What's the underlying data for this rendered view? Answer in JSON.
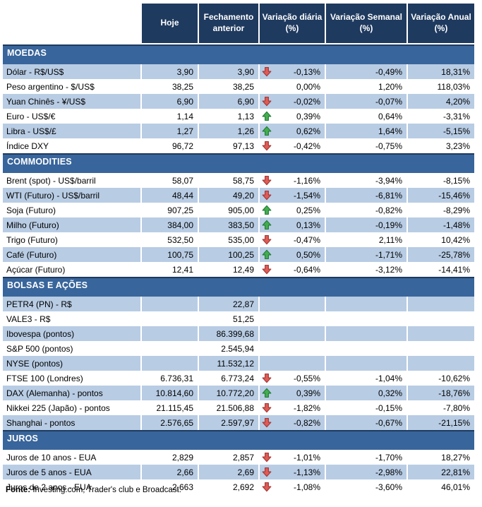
{
  "colors": {
    "header_bg": "#1F3A5F",
    "section_bg": "#38659B",
    "row_alt": "#B8CCE4",
    "arrow_up_fill": "#44AE4E",
    "arrow_up_stroke": "#1E7B33",
    "arrow_down_fill": "#E05B55",
    "arrow_down_stroke": "#A03634"
  },
  "header": {
    "columns": [
      "Hoje",
      "Fechamento anterior",
      "Variação diária (%)",
      "Variação Semanal (%)",
      "Variação Anual (%)"
    ]
  },
  "sections": [
    {
      "title": "MOEDAS",
      "rows": [
        {
          "label": "Dólar - R$/US$",
          "hoje": "3,90",
          "fechamento": "3,90",
          "arrow": "down",
          "diaria": "-0,13%",
          "semanal": "-0,49%",
          "anual": "18,31%"
        },
        {
          "label": "Peso argentino - $/US$",
          "hoje": "38,25",
          "fechamento": "38,25",
          "arrow": "none",
          "diaria": "0,00%",
          "semanal": "1,20%",
          "anual": "118,03%"
        },
        {
          "label": "Yuan Chinês - ¥/US$",
          "hoje": "6,90",
          "fechamento": "6,90",
          "arrow": "down",
          "diaria": "-0,02%",
          "semanal": "-0,07%",
          "anual": "4,20%"
        },
        {
          "label": "Euro - US$/€",
          "hoje": "1,14",
          "fechamento": "1,13",
          "arrow": "up",
          "diaria": "0,39%",
          "semanal": "0,64%",
          "anual": "-3,31%"
        },
        {
          "label": "Libra - US$/£",
          "hoje": "1,27",
          "fechamento": "1,26",
          "arrow": "up",
          "diaria": "0,62%",
          "semanal": "1,64%",
          "anual": "-5,15%"
        },
        {
          "label": "Índice DXY",
          "hoje": "96,72",
          "fechamento": "97,13",
          "arrow": "down",
          "diaria": "-0,42%",
          "semanal": "-0,75%",
          "anual": "3,23%"
        }
      ]
    },
    {
      "title": "COMMODITIES",
      "rows": [
        {
          "label": "Brent (spot) - US$/barril",
          "hoje": "58,07",
          "fechamento": "58,75",
          "arrow": "down",
          "diaria": "-1,16%",
          "semanal": "-3,94%",
          "anual": "-8,15%"
        },
        {
          "label": "WTI (Futuro) - US$/barril",
          "hoje": "48,44",
          "fechamento": "49,20",
          "arrow": "down",
          "diaria": "-1,54%",
          "semanal": "-6,81%",
          "anual": "-15,46%"
        },
        {
          "label": "Soja (Futuro)",
          "hoje": "907,25",
          "fechamento": "905,00",
          "arrow": "up",
          "diaria": "0,25%",
          "semanal": "-0,82%",
          "anual": "-8,29%"
        },
        {
          "label": "Milho (Futuro)",
          "hoje": "384,00",
          "fechamento": "383,50",
          "arrow": "up",
          "diaria": "0,13%",
          "semanal": "-0,19%",
          "anual": "-1,48%"
        },
        {
          "label": "Trigo (Futuro)",
          "hoje": "532,50",
          "fechamento": "535,00",
          "arrow": "down",
          "diaria": "-0,47%",
          "semanal": "2,11%",
          "anual": "10,42%"
        },
        {
          "label": "Café (Futuro)",
          "hoje": "100,75",
          "fechamento": "100,25",
          "arrow": "up",
          "diaria": "0,50%",
          "semanal": "-1,71%",
          "anual": "-25,78%"
        },
        {
          "label": "Açúcar (Futuro)",
          "hoje": "12,41",
          "fechamento": "12,49",
          "arrow": "down",
          "diaria": "-0,64%",
          "semanal": "-3,12%",
          "anual": "-14,41%"
        }
      ]
    },
    {
      "title": "BOLSAS E AÇÕES",
      "rows": [
        {
          "label": "PETR4 (PN) - R$",
          "hoje": "",
          "fechamento": "22,87",
          "arrow": "none",
          "diaria": "",
          "semanal": "",
          "anual": ""
        },
        {
          "label": "VALE3 - R$",
          "hoje": "",
          "fechamento": "51,25",
          "arrow": "none",
          "diaria": "",
          "semanal": "",
          "anual": ""
        },
        {
          "label": "Ibovespa (pontos)",
          "hoje": "",
          "fechamento": "86.399,68",
          "arrow": "none",
          "diaria": "",
          "semanal": "",
          "anual": ""
        },
        {
          "label": "S&P 500 (pontos)",
          "hoje": "",
          "fechamento": "2.545,94",
          "arrow": "none",
          "diaria": "",
          "semanal": "",
          "anual": ""
        },
        {
          "label": "NYSE (pontos)",
          "hoje": "",
          "fechamento": "11.532,12",
          "arrow": "none",
          "diaria": "",
          "semanal": "",
          "anual": ""
        },
        {
          "label": "FTSE 100 (Londres)",
          "hoje": "6.736,31",
          "fechamento": "6.773,24",
          "arrow": "down",
          "diaria": "-0,55%",
          "semanal": "-1,04%",
          "anual": "-10,62%"
        },
        {
          "label": "DAX (Alemanha) - pontos",
          "hoje": "10.814,60",
          "fechamento": "10.772,20",
          "arrow": "up",
          "diaria": "0,39%",
          "semanal": "0,32%",
          "anual": "-18,76%"
        },
        {
          "label": "Nikkei 225 (Japão) - pontos",
          "hoje": "21.115,45",
          "fechamento": "21.506,88",
          "arrow": "down",
          "diaria": "-1,82%",
          "semanal": "-0,15%",
          "anual": "-7,80%"
        },
        {
          "label": "Shanghai - pontos",
          "hoje": "2.576,65",
          "fechamento": "2.597,97",
          "arrow": "down",
          "diaria": "-0,82%",
          "semanal": "-0,67%",
          "anual": "-21,15%"
        }
      ]
    },
    {
      "title": "JUROS",
      "rows": [
        {
          "label": "Juros de 10 anos - EUA",
          "hoje": "2,829",
          "fechamento": "2,857",
          "arrow": "down",
          "diaria": "-1,01%",
          "semanal": "-1,70%",
          "anual": "18,27%"
        },
        {
          "label": "Juros de 5 anos - EUA",
          "hoje": "2,66",
          "fechamento": "2,69",
          "arrow": "down",
          "diaria": "-1,13%",
          "semanal": "-2,98%",
          "anual": "22,81%"
        },
        {
          "label": "Juros de 2 anos - EUA",
          "hoje": "2,663",
          "fechamento": "2,692",
          "arrow": "down",
          "diaria": "-1,08%",
          "semanal": "-3,60%",
          "anual": "46,01%"
        }
      ]
    }
  ],
  "footer": {
    "bold": "Fonte:",
    "text": " Investing.com, Trader's club e Broadcast."
  }
}
